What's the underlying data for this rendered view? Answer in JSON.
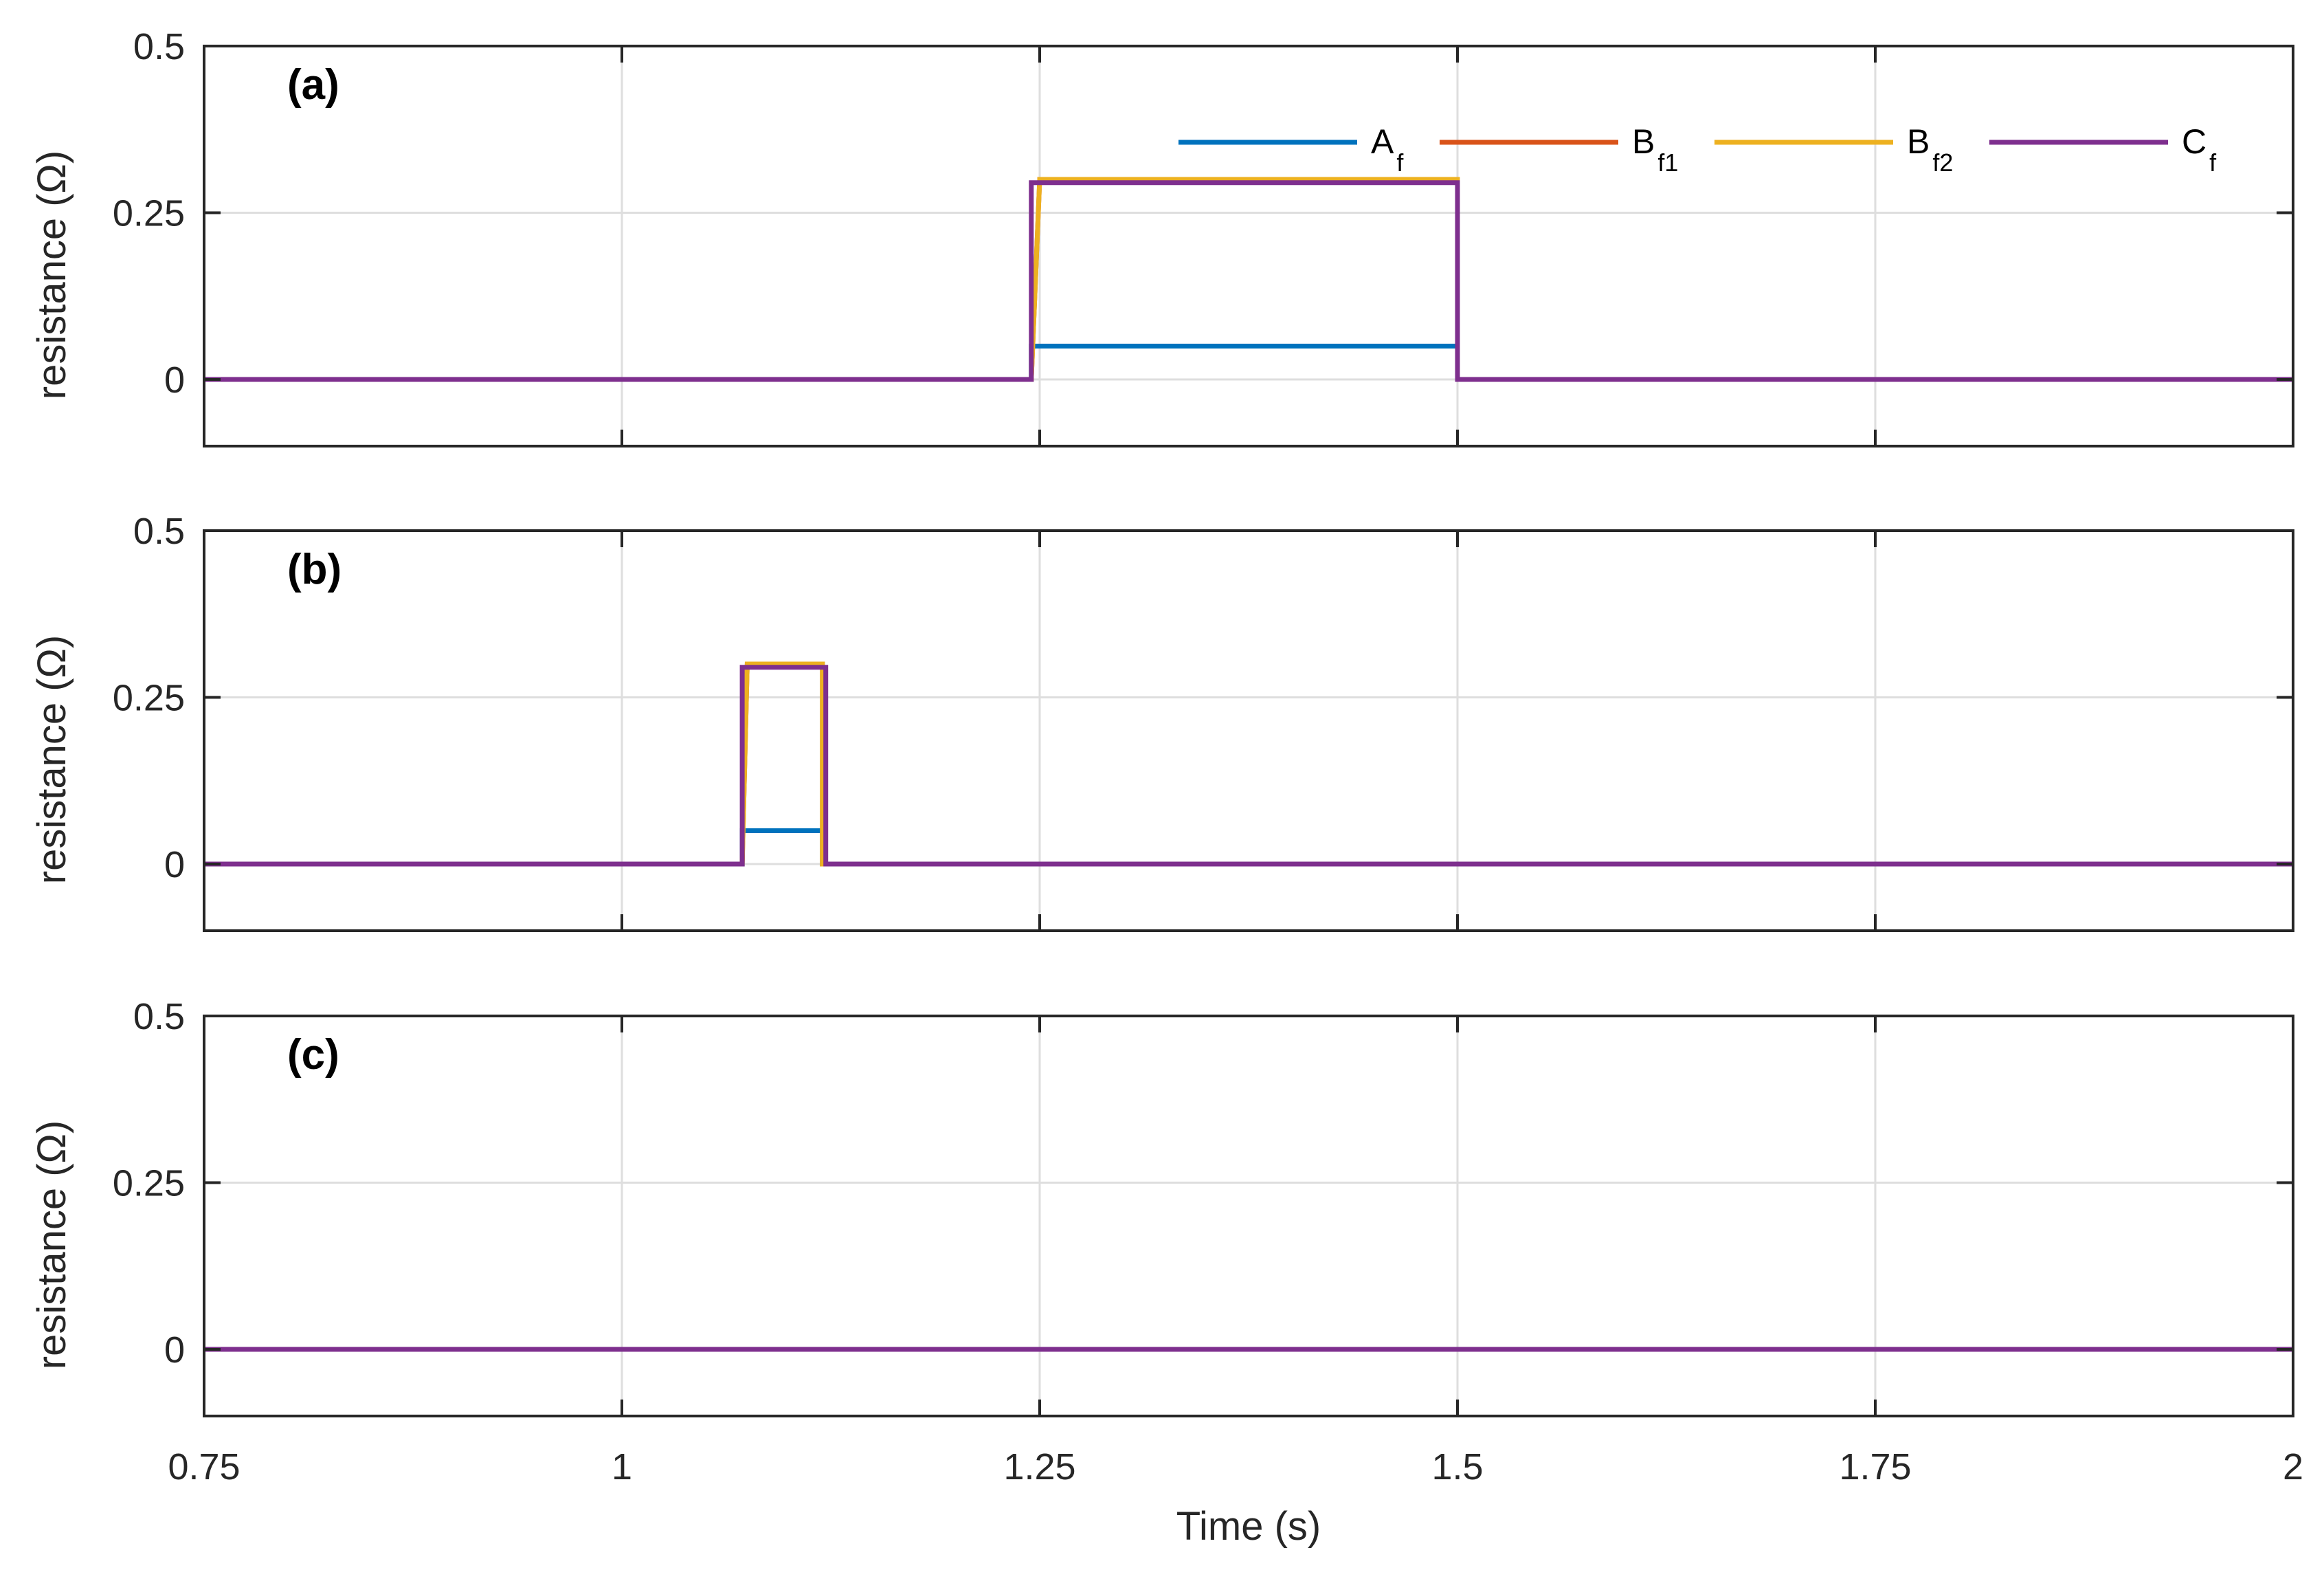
{
  "chart_data": [
    {
      "type": "line",
      "panel_label": "(a)",
      "ylabel": "resistance (Ω)",
      "xlabel": "",
      "xlim": [
        0.75,
        2
      ],
      "ylim": [
        -0.1,
        0.5
      ],
      "xticks": [
        0.75,
        1,
        1.25,
        1.5,
        1.75,
        2
      ],
      "yticks": [
        0,
        0.25,
        0.5
      ],
      "ytick_labels": [
        "0",
        "0.25",
        "0.5"
      ],
      "grid": true,
      "legend": "top-right",
      "series": [
        {
          "name": "A_f",
          "color": "#0072BD",
          "x": [
            0.75,
            1.245,
            1.245,
            1.5,
            1.5,
            2
          ],
          "y": [
            0,
            0,
            0.05,
            0.05,
            0,
            0
          ]
        },
        {
          "name": "B_f1",
          "color": "#D95319",
          "x": [
            0.75,
            1.245,
            1.25,
            1.5,
            1.5,
            2
          ],
          "y": [
            0,
            0,
            0.3,
            0.3,
            0,
            0
          ]
        },
        {
          "name": "B_f2",
          "color": "#EDB120",
          "x": [
            0.75,
            1.245,
            1.25,
            1.5,
            1.5,
            2
          ],
          "y": [
            0,
            0,
            0.3,
            0.3,
            0,
            0
          ]
        },
        {
          "name": "C_f",
          "color": "#7E2F8E",
          "x": [
            0.75,
            1.245,
            1.245,
            1.5,
            1.5,
            2
          ],
          "y": [
            0,
            0,
            0.295,
            0.295,
            0,
            0
          ]
        }
      ]
    },
    {
      "type": "line",
      "panel_label": "(b)",
      "ylabel": "resistance (Ω)",
      "xlabel": "",
      "xlim": [
        0.75,
        2
      ],
      "ylim": [
        -0.1,
        0.5
      ],
      "xticks": [
        0.75,
        1,
        1.25,
        1.5,
        1.75,
        2
      ],
      "yticks": [
        0,
        0.25,
        0.5
      ],
      "ytick_labels": [
        "0",
        "0.25",
        "0.5"
      ],
      "grid": true,
      "series": [
        {
          "name": "A_f",
          "color": "#0072BD",
          "x": [
            0.75,
            1.072,
            1.072,
            1.12,
            1.12,
            2
          ],
          "y": [
            0,
            0,
            0.05,
            0.05,
            0,
            0
          ]
        },
        {
          "name": "B_f1",
          "color": "#D95319",
          "x": [
            0.75,
            1.072,
            1.075,
            1.12,
            1.12,
            2
          ],
          "y": [
            0,
            0,
            0.3,
            0.3,
            0,
            0
          ]
        },
        {
          "name": "B_f2",
          "color": "#EDB120",
          "x": [
            0.75,
            1.072,
            1.075,
            1.12,
            1.12,
            2
          ],
          "y": [
            0,
            0,
            0.3,
            0.3,
            0,
            0
          ]
        },
        {
          "name": "C_f",
          "color": "#7E2F8E",
          "x": [
            0.75,
            1.072,
            1.072,
            1.122,
            1.122,
            2
          ],
          "y": [
            0,
            0,
            0.295,
            0.295,
            0,
            0
          ]
        }
      ]
    },
    {
      "type": "line",
      "panel_label": "(c)",
      "ylabel": "resistance (Ω)",
      "xlabel": "Time (s)",
      "xlim": [
        0.75,
        2
      ],
      "ylim": [
        -0.1,
        0.5
      ],
      "xticks": [
        0.75,
        1,
        1.25,
        1.5,
        1.75,
        2
      ],
      "xtick_labels": [
        "0.75",
        "1",
        "1.25",
        "1.5",
        "1.75",
        "2"
      ],
      "yticks": [
        0,
        0.25,
        0.5
      ],
      "ytick_labels": [
        "0",
        "0.25",
        "0.5"
      ],
      "grid": true,
      "series": [
        {
          "name": "A_f",
          "color": "#0072BD",
          "x": [
            0.75,
            2
          ],
          "y": [
            0,
            0
          ]
        },
        {
          "name": "B_f1",
          "color": "#D95319",
          "x": [
            0.75,
            2
          ],
          "y": [
            0,
            0
          ]
        },
        {
          "name": "B_f2",
          "color": "#EDB120",
          "x": [
            0.75,
            2
          ],
          "y": [
            0,
            0
          ]
        },
        {
          "name": "C_f",
          "color": "#7E2F8E",
          "x": [
            0.75,
            2
          ],
          "y": [
            0,
            0
          ]
        }
      ]
    }
  ],
  "legend": {
    "entries": [
      {
        "base": "A",
        "sub": "f",
        "color": "#0072BD"
      },
      {
        "base": "B",
        "sub": "f1",
        "color": "#D95319"
      },
      {
        "base": "B",
        "sub": "f2",
        "color": "#EDB120"
      },
      {
        "base": "C",
        "sub": "f",
        "color": "#7E2F8E"
      }
    ]
  }
}
